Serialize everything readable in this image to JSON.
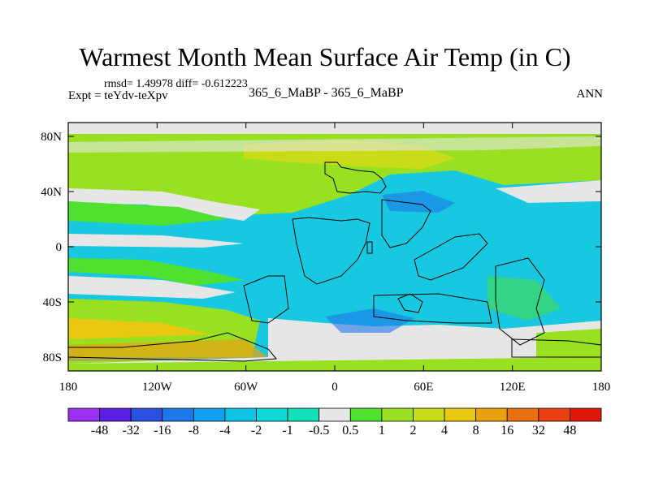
{
  "chart_data": {
    "type": "heatmap",
    "title": "Warmest Month Mean Surface Air Temp (in C)",
    "stats_text": "rmsd= 1.49978 diff= -0.612223",
    "left_label": "Expt = teYdv-teXpv",
    "center_label": "365_6_MaBP - 365_6_MaBP",
    "right_label": "ANN",
    "x_ticks": [
      {
        "value": -180,
        "label": "180"
      },
      {
        "value": -120,
        "label": "120W"
      },
      {
        "value": -60,
        "label": "60W"
      },
      {
        "value": 0,
        "label": "0"
      },
      {
        "value": 60,
        "label": "60E"
      },
      {
        "value": 120,
        "label": "120E"
      },
      {
        "value": 180,
        "label": "180"
      }
    ],
    "y_ticks": [
      {
        "value": 80,
        "label": "80N"
      },
      {
        "value": 40,
        "label": "40N"
      },
      {
        "value": 0,
        "label": "0"
      },
      {
        "value": -40,
        "label": "40S"
      },
      {
        "value": -80,
        "label": "80S"
      }
    ],
    "xlim": [
      -180,
      180
    ],
    "ylim": [
      -90,
      90
    ],
    "colorbar": {
      "levels": [
        "-48",
        "-32",
        "-16",
        "-8",
        "-4",
        "-2",
        "-1",
        "-0.5",
        "0.5",
        "1",
        "2",
        "4",
        "8",
        "16",
        "32",
        "48"
      ],
      "colors": [
        "#9b30f0",
        "#5a1ee0",
        "#2a50e0",
        "#1c78e8",
        "#10a0f0",
        "#10c4e8",
        "#10d8d8",
        "#10e0b8",
        "#e6e6e6",
        "#50e030",
        "#98e020",
        "#c8dc18",
        "#e8c810",
        "#e8a010",
        "#e87010",
        "#e84010",
        "#e01808"
      ]
    },
    "grid": false
  }
}
